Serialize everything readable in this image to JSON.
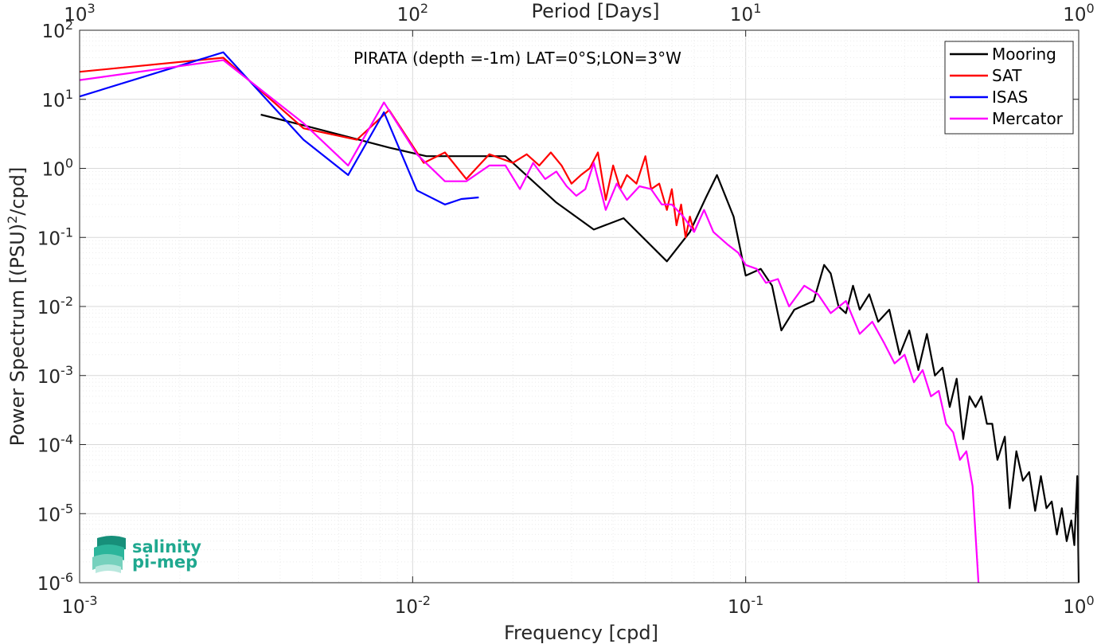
{
  "chart_data": {
    "type": "line",
    "title": "PIRATA (depth =-1m) LAT=0°S;LON=3°W",
    "xlabel": "Frequency [cpd]",
    "ylabel": "Power Spectrum [(PSU)²/cpd]",
    "top_xlabel": "Period [Days]",
    "xscale": "log",
    "yscale": "log",
    "xlim": [
      0.001,
      1
    ],
    "ylim": [
      1e-06,
      100
    ],
    "grid": true,
    "legend_position": "top-right",
    "x_ticks": [
      {
        "value": 0.001,
        "base": "10",
        "exp": "-3"
      },
      {
        "value": 0.01,
        "base": "10",
        "exp": "-2"
      },
      {
        "value": 0.1,
        "base": "10",
        "exp": "-1"
      },
      {
        "value": 1,
        "base": "10",
        "exp": "0"
      }
    ],
    "top_ticks": [
      {
        "value": 0.001,
        "base": "10",
        "exp": "3"
      },
      {
        "value": 0.01,
        "base": "10",
        "exp": "2"
      },
      {
        "value": 0.1,
        "base": "10",
        "exp": "1"
      },
      {
        "value": 1,
        "base": "10",
        "exp": "0"
      }
    ],
    "y_ticks": [
      {
        "value": 100,
        "base": "10",
        "exp": "2"
      },
      {
        "value": 10,
        "base": "10",
        "exp": "1"
      },
      {
        "value": 1,
        "base": "10",
        "exp": "0"
      },
      {
        "value": 0.1,
        "base": "10",
        "exp": "-1"
      },
      {
        "value": 0.01,
        "base": "10",
        "exp": "-2"
      },
      {
        "value": 0.001,
        "base": "10",
        "exp": "-3"
      },
      {
        "value": 0.0001,
        "base": "10",
        "exp": "-4"
      },
      {
        "value": 1e-05,
        "base": "10",
        "exp": "-5"
      },
      {
        "value": 1e-06,
        "base": "10",
        "exp": "-6"
      }
    ],
    "series": [
      {
        "name": "Mooring",
        "color": "#000000",
        "x": [
          0.0035,
          0.0047,
          0.0065,
          0.0085,
          0.011,
          0.015,
          0.019,
          0.027,
          0.035,
          0.043,
          0.058,
          0.068,
          0.076,
          0.082,
          0.092,
          0.1,
          0.111,
          0.12,
          0.128,
          0.14,
          0.16,
          0.172,
          0.18,
          0.19,
          0.2,
          0.21,
          0.22,
          0.235,
          0.25,
          0.27,
          0.29,
          0.31,
          0.33,
          0.35,
          0.37,
          0.39,
          0.41,
          0.43,
          0.45,
          0.47,
          0.49,
          0.51,
          0.53,
          0.55,
          0.57,
          0.6,
          0.62,
          0.65,
          0.68,
          0.71,
          0.74,
          0.77,
          0.8,
          0.83,
          0.86,
          0.89,
          0.92,
          0.95,
          0.97,
          0.99,
          1.0
        ],
        "y": [
          6.0,
          4.2,
          2.8,
          2.0,
          1.5,
          1.5,
          1.5,
          0.32,
          0.13,
          0.19,
          0.045,
          0.12,
          0.38,
          0.8,
          0.2,
          0.028,
          0.035,
          0.02,
          0.0045,
          0.009,
          0.012,
          0.04,
          0.03,
          0.01,
          0.008,
          0.02,
          0.009,
          0.015,
          0.006,
          0.009,
          0.002,
          0.0045,
          0.0012,
          0.004,
          0.001,
          0.0013,
          0.00035,
          0.0009,
          0.00012,
          0.0005,
          0.00035,
          0.0005,
          0.0002,
          0.0002,
          6e-05,
          0.00013,
          1.2e-05,
          8e-05,
          3e-05,
          4e-05,
          1.1e-05,
          3.5e-05,
          1.2e-05,
          1.5e-05,
          5e-06,
          1.2e-05,
          4e-06,
          8e-06,
          3.5e-06,
          3.5e-05,
          1e-06
        ]
      },
      {
        "name": "SAT",
        "color": "#ff0000",
        "x": [
          0.001,
          0.0027,
          0.0047,
          0.0068,
          0.0085,
          0.0108,
          0.0125,
          0.0145,
          0.017,
          0.02,
          0.022,
          0.024,
          0.026,
          0.028,
          0.03,
          0.032,
          0.034,
          0.036,
          0.038,
          0.04,
          0.042,
          0.044,
          0.047,
          0.05,
          0.052,
          0.055,
          0.058,
          0.06,
          0.062,
          0.064,
          0.066,
          0.068,
          0.07
        ],
        "y": [
          25.0,
          40.0,
          3.8,
          2.6,
          7.0,
          1.2,
          1.7,
          0.7,
          1.6,
          1.2,
          1.6,
          1.1,
          1.7,
          1.1,
          0.6,
          0.8,
          1.0,
          1.7,
          0.35,
          1.1,
          0.5,
          0.8,
          0.6,
          1.5,
          0.5,
          0.6,
          0.25,
          0.5,
          0.15,
          0.3,
          0.1,
          0.2,
          0.12
        ]
      },
      {
        "name": "ISAS",
        "color": "#0000ff",
        "x": [
          0.001,
          0.0027,
          0.0047,
          0.0064,
          0.0082,
          0.0103,
          0.0125,
          0.014,
          0.0158
        ],
        "y": [
          11.0,
          48.0,
          2.6,
          0.8,
          6.5,
          0.48,
          0.3,
          0.36,
          0.38
        ]
      },
      {
        "name": "Mercator",
        "color": "#ff00ff",
        "x": [
          0.001,
          0.0027,
          0.0047,
          0.0064,
          0.0082,
          0.0103,
          0.0125,
          0.0145,
          0.017,
          0.019,
          0.021,
          0.023,
          0.025,
          0.027,
          0.029,
          0.031,
          0.033,
          0.035,
          0.038,
          0.041,
          0.044,
          0.048,
          0.052,
          0.056,
          0.06,
          0.065,
          0.07,
          0.075,
          0.08,
          0.088,
          0.095,
          0.1,
          0.108,
          0.115,
          0.125,
          0.135,
          0.15,
          0.165,
          0.18,
          0.2,
          0.22,
          0.24,
          0.26,
          0.28,
          0.3,
          0.32,
          0.34,
          0.36,
          0.38,
          0.4,
          0.42,
          0.44,
          0.46,
          0.48,
          0.5
        ],
        "y": [
          19.0,
          37.0,
          4.5,
          1.1,
          9.0,
          1.6,
          0.65,
          0.65,
          1.1,
          1.1,
          0.5,
          1.2,
          0.7,
          0.9,
          0.55,
          0.4,
          0.5,
          1.2,
          0.25,
          0.6,
          0.35,
          0.55,
          0.5,
          0.3,
          0.3,
          0.2,
          0.12,
          0.25,
          0.12,
          0.08,
          0.06,
          0.04,
          0.035,
          0.022,
          0.025,
          0.01,
          0.02,
          0.015,
          0.008,
          0.012,
          0.004,
          0.006,
          0.003,
          0.0015,
          0.002,
          0.0008,
          0.0012,
          0.0005,
          0.0006,
          0.0002,
          0.00015,
          6e-05,
          8e-05,
          2.5e-05,
          1e-06
        ]
      }
    ]
  },
  "logo": {
    "line1": "salinity",
    "line2": "pi-mep"
  }
}
